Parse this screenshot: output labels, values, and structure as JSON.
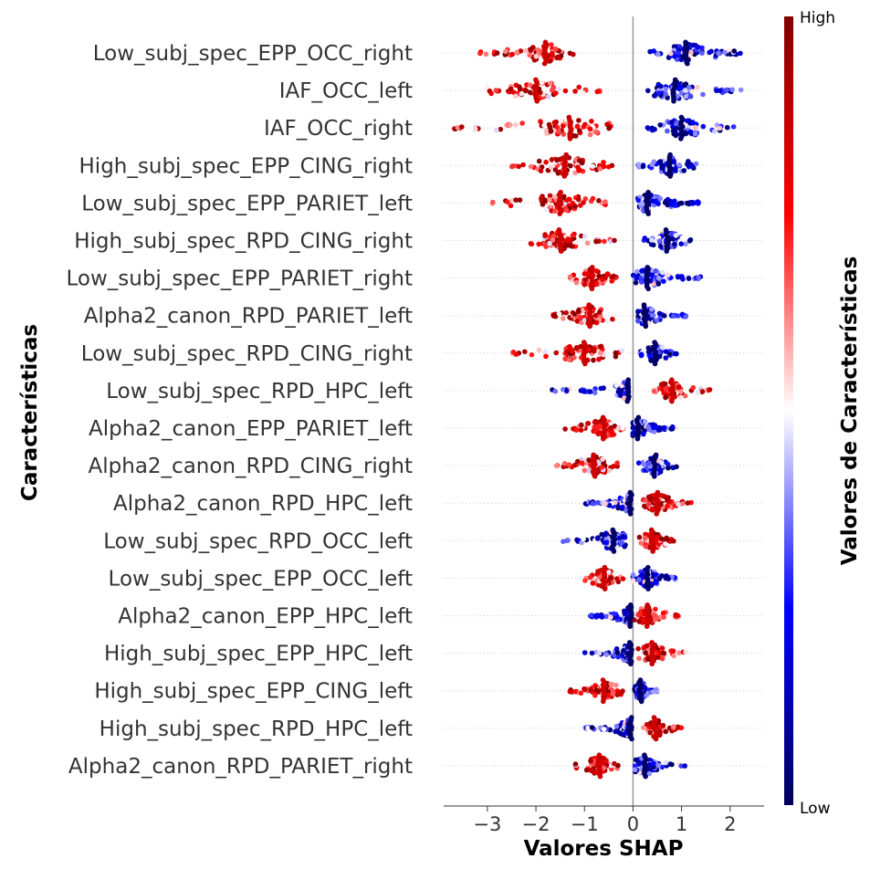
{
  "chart_data": {
    "type": "scatter",
    "subtype": "shap-beeswarm",
    "xlabel": "Valores SHAP",
    "ylabel": "Características",
    "xlim": [
      -3.9,
      2.7
    ],
    "xticks": [
      -3,
      -2,
      -1,
      0,
      1,
      2
    ],
    "xtick_labels": [
      "−3",
      "−2",
      "−1",
      "0",
      "1",
      "2"
    ],
    "zero_line": true,
    "grid": false,
    "colorbar": {
      "label": "Valores de Características",
      "high_label": "High",
      "low_label": "Low",
      "colors": [
        "#00005a",
        "#0000ff",
        "#ffffff",
        "#ff0000",
        "#800000"
      ],
      "position": "right"
    },
    "features": [
      {
        "name": "Low_subj_spec_EPP_OCC_right",
        "high_min": -3.2,
        "high_max": -1.2,
        "high_center": -1.8,
        "low_min": 0.3,
        "low_max": 2.3,
        "low_center": 1.1
      },
      {
        "name": "IAF_OCC_left",
        "high_min": -3.0,
        "high_max": -0.6,
        "high_center": -2.0,
        "low_min": 0.3,
        "low_max": 2.4,
        "low_center": 0.85
      },
      {
        "name": "IAF_OCC_right",
        "high_min": -3.7,
        "high_max": -0.3,
        "high_center": -1.3,
        "low_min": 0.3,
        "low_max": 2.1,
        "low_center": 1.0
      },
      {
        "name": "High_subj_spec_EPP_CING_right",
        "high_min": -2.5,
        "high_max": -0.4,
        "high_center": -1.4,
        "low_min": 0.1,
        "low_max": 1.3,
        "low_center": 0.75
      },
      {
        "name": "Low_subj_spec_EPP_PARIET_left",
        "high_min": -2.9,
        "high_max": -0.5,
        "high_center": -1.5,
        "low_min": 0.1,
        "low_max": 1.4,
        "low_center": 0.3
      },
      {
        "name": "High_subj_spec_RPD_CING_right",
        "high_min": -2.2,
        "high_max": -0.3,
        "high_center": -1.5,
        "low_min": 0.2,
        "low_max": 1.2,
        "low_center": 0.7
      },
      {
        "name": "Low_subj_spec_EPP_PARIET_right",
        "high_min": -1.3,
        "high_max": -0.3,
        "high_center": -0.85,
        "low_min": 0.0,
        "low_max": 1.4,
        "low_center": 0.3
      },
      {
        "name": "Alpha2_canon_RPD_PARIET_left",
        "high_min": -1.7,
        "high_max": -0.3,
        "high_center": -0.9,
        "low_min": 0.1,
        "low_max": 1.1,
        "low_center": 0.25
      },
      {
        "name": "Low_subj_spec_RPD_CING_right",
        "high_min": -2.5,
        "high_max": -0.2,
        "high_center": -1.0,
        "low_min": 0.1,
        "low_max": 0.9,
        "low_center": 0.45
      },
      {
        "name": "Low_subj_spec_RPD_HPC_left",
        "high_min": 0.3,
        "high_max": 1.6,
        "high_center": 0.8,
        "low_min": -1.7,
        "low_max": -0.1,
        "low_center": -0.1
      },
      {
        "name": "Alpha2_canon_EPP_PARIET_left",
        "high_min": -1.4,
        "high_max": -0.2,
        "high_center": -0.6,
        "low_min": 0.0,
        "low_max": 0.9,
        "low_center": 0.1
      },
      {
        "name": "Alpha2_canon_RPD_CING_right",
        "high_min": -1.6,
        "high_max": -0.3,
        "high_center": -0.8,
        "low_min": 0.1,
        "low_max": 0.9,
        "low_center": 0.45
      },
      {
        "name": "Alpha2_canon_RPD_HPC_left",
        "high_min": 0.2,
        "high_max": 1.2,
        "high_center": 0.5,
        "low_min": -1.1,
        "low_max": -0.1,
        "low_center": -0.05
      },
      {
        "name": "Low_subj_spec_RPD_OCC_left",
        "high_min": 0.1,
        "high_max": 0.9,
        "high_center": 0.4,
        "low_min": -1.5,
        "low_max": -0.1,
        "low_center": -0.4
      },
      {
        "name": "Low_subj_spec_EPP_OCC_left",
        "high_min": -1.1,
        "high_max": -0.2,
        "high_center": -0.6,
        "low_min": 0.0,
        "low_max": 0.9,
        "low_center": 0.3
      },
      {
        "name": "Alpha2_canon_EPP_HPC_left",
        "high_min": 0.0,
        "high_max": 1.0,
        "high_center": 0.3,
        "low_min": -0.9,
        "low_max": -0.1,
        "low_center": -0.05
      },
      {
        "name": "High_subj_spec_EPP_HPC_left",
        "high_min": 0.1,
        "high_max": 1.1,
        "high_center": 0.4,
        "low_min": -1.0,
        "low_max": -0.1,
        "low_center": -0.05
      },
      {
        "name": "High_subj_spec_EPP_CING_left",
        "high_min": -1.3,
        "high_max": -0.2,
        "high_center": -0.6,
        "low_min": 0.0,
        "low_max": 0.5,
        "low_center": 0.15
      },
      {
        "name": "High_subj_spec_RPD_HPC_left",
        "high_min": 0.2,
        "high_max": 1.0,
        "high_center": 0.45,
        "low_min": -1.0,
        "low_max": -0.1,
        "low_center": -0.05
      },
      {
        "name": "Alpha2_canon_RPD_PARIET_right",
        "high_min": -1.2,
        "high_max": -0.2,
        "high_center": -0.7,
        "low_min": 0.0,
        "low_max": 1.1,
        "low_center": 0.25
      }
    ]
  }
}
